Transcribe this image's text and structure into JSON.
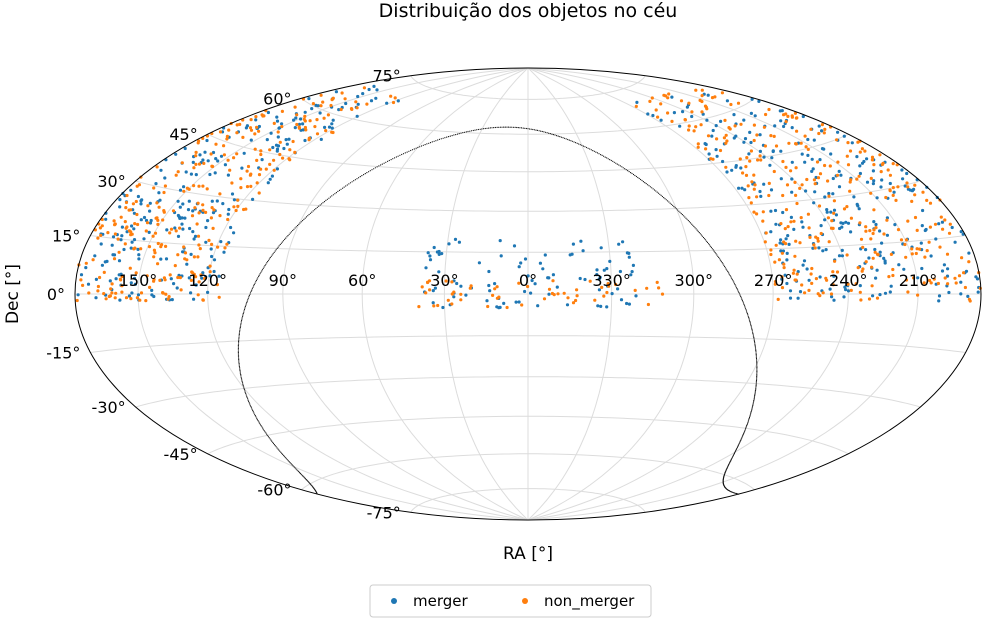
{
  "chart_data": {
    "type": "scatter",
    "projection": "aitoff-hammer (sky map)",
    "title": "Distribuição dos objetos no céu",
    "xlabel": "RA [°]",
    "ylabel": "Dec [°]",
    "ra_tick_labels": [
      "150°",
      "120°",
      "90°",
      "60°",
      "30°",
      "0°",
      "330°",
      "300°",
      "270°",
      "240°",
      "210°"
    ],
    "dec_tick_labels": [
      "75°",
      "60°",
      "45°",
      "30°",
      "15°",
      "0°",
      "-15°",
      "-30°",
      "-45°",
      "-60°",
      "-75°"
    ],
    "grid": true,
    "legend_position": "bottom-center",
    "series": [
      {
        "name": "merger",
        "color": "#1f77b4",
        "regions": [
          {
            "ra_range": [
              115,
              180
            ],
            "dec_range": [
              -2,
              70
            ],
            "count": 260
          },
          {
            "ra_range": [
              180,
              270
            ],
            "dec_range": [
              -2,
              70
            ],
            "count": 290
          },
          {
            "ra_range": [
              -40,
              40
            ],
            "dec_range": [
              -5,
              20
            ],
            "count": 95
          }
        ]
      },
      {
        "name": "non_merger",
        "color": "#ff7f0e",
        "regions": [
          {
            "ra_range": [
              115,
              180
            ],
            "dec_range": [
              -2,
              70
            ],
            "count": 300
          },
          {
            "ra_range": [
              180,
              270
            ],
            "dec_range": [
              -2,
              70
            ],
            "count": 330
          },
          {
            "ra_range": [
              -50,
              40
            ],
            "dec_range": [
              -5,
              5
            ],
            "count": 55
          }
        ]
      }
    ],
    "galactic_plane_curve": true
  }
}
